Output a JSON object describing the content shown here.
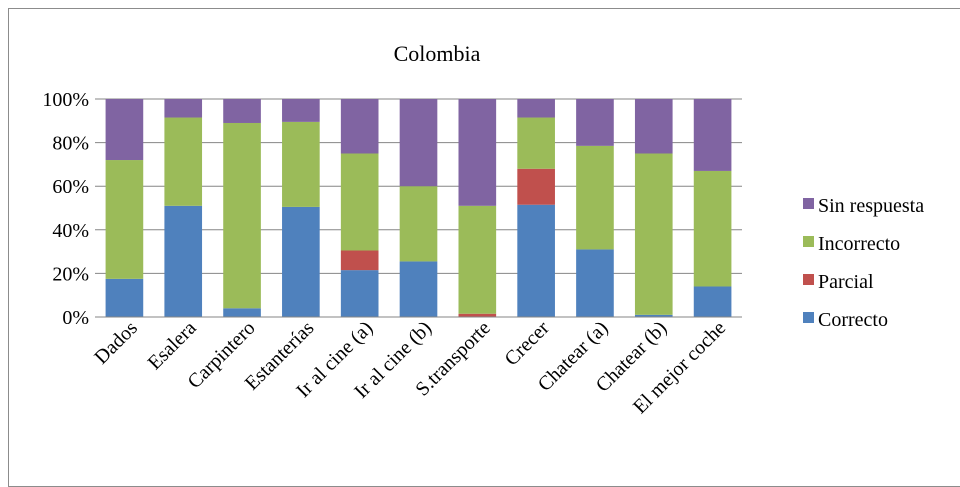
{
  "chart_data": {
    "type": "bar",
    "stacked": true,
    "percent": true,
    "title": "Colombia",
    "xlabel": "",
    "ylabel": "",
    "ylim": [
      0,
      100
    ],
    "y_ticks": [
      "0%",
      "20%",
      "40%",
      "60%",
      "80%",
      "100%"
    ],
    "grid": true,
    "legend_position": "right",
    "categories": [
      "Dados",
      "Esalera",
      "Carpintero",
      "Estanterías",
      "Ir al cine (a)",
      "Ir al cine (b)",
      "S.transporte",
      "Crecer",
      "Chatear (a)",
      "Chatear (b)",
      "El mejor coche"
    ],
    "series": [
      {
        "name": "Correcto",
        "color": "#4f81bd",
        "values": [
          17.5,
          51,
          4,
          50.5,
          21.5,
          25.5,
          0,
          51.5,
          31,
          1,
          14
        ]
      },
      {
        "name": "Parcial",
        "color": "#c0504d",
        "values": [
          0,
          0,
          0,
          0,
          9,
          0,
          1.5,
          16.5,
          0,
          0,
          0
        ]
      },
      {
        "name": "Incorrecto",
        "color": "#9bbb59",
        "values": [
          54.5,
          40.5,
          85,
          39,
          44.5,
          34.5,
          49.5,
          23.5,
          47.5,
          74,
          53
        ]
      },
      {
        "name": "Sin respuesta",
        "color": "#8064a2",
        "values": [
          28,
          8.5,
          11,
          10.5,
          25,
          40,
          49,
          8.5,
          21.5,
          25,
          33
        ]
      }
    ]
  }
}
